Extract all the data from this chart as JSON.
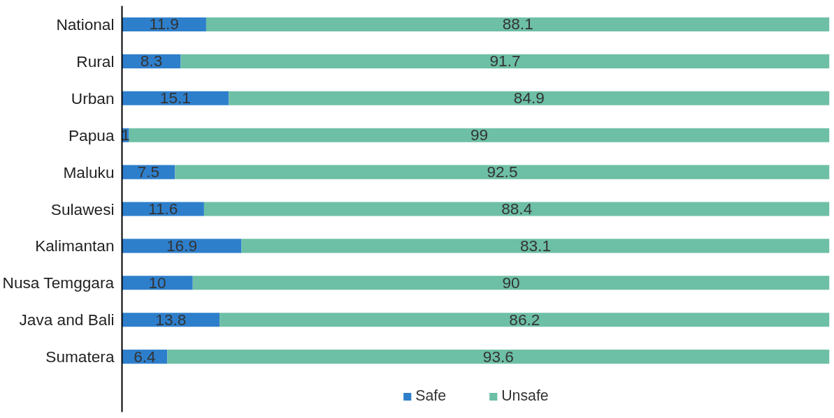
{
  "chart_data": {
    "type": "bar",
    "orientation": "horizontal",
    "stacked": true,
    "data_labels": true,
    "legend": "bottom",
    "grid": false,
    "categories": [
      "National",
      "Rural",
      "Urban",
      "Papua",
      "Maluku",
      "Sulawesi",
      "Kalimantan",
      "Nusa Temggara",
      "Java and Bali",
      "Sumatera"
    ],
    "series": [
      {
        "name": "Safe",
        "color": "#2e7fcb",
        "values": [
          11.9,
          8.3,
          15.1,
          1,
          7.5,
          11.6,
          16.9,
          10,
          13.8,
          6.4
        ]
      },
      {
        "name": "Unsafe",
        "color": "#6dbfa5",
        "values": [
          88.1,
          91.7,
          84.9,
          99,
          92.5,
          88.4,
          83.1,
          90,
          86.2,
          93.6
        ]
      }
    ]
  }
}
